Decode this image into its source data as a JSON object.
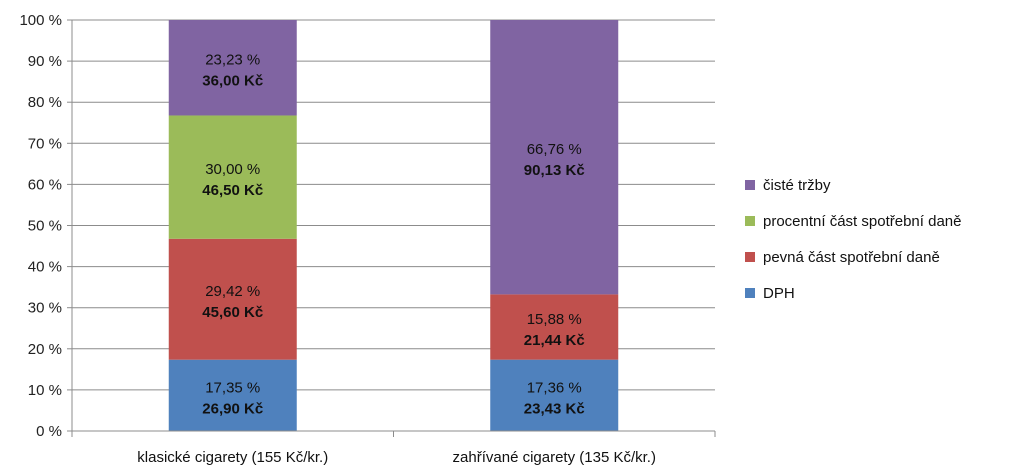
{
  "chart_data": {
    "type": "bar",
    "stacked": true,
    "grid": true,
    "legend_position": "right",
    "ylim": [
      0,
      100
    ],
    "y_ticks": [
      "0 %",
      "10 %",
      "20 %",
      "30 %",
      "40 %",
      "50 %",
      "60 %",
      "70 %",
      "80 %",
      "90 %",
      "100 %"
    ],
    "y_tick_values": [
      0,
      10,
      20,
      30,
      40,
      50,
      60,
      70,
      80,
      90,
      100
    ],
    "categories": [
      "klasické cigarety (155 Kč/kr.)",
      "zahřívané cigarety (135 Kč/kr.)"
    ],
    "series": [
      {
        "name": "DPH",
        "color": "#4f81bd",
        "values": [
          17.35,
          17.36
        ],
        "labels": [
          "17,35 %",
          "17,36 %"
        ],
        "amounts": [
          "26,90 Kč",
          "23,43 Kč"
        ]
      },
      {
        "name": "pevná část spotřební daně",
        "color": "#c0504d",
        "values": [
          29.42,
          15.88
        ],
        "labels": [
          "29,42 %",
          "15,88 %"
        ],
        "amounts": [
          "45,60 Kč",
          "21,44 Kč"
        ]
      },
      {
        "name": "procentní část spotřební daně",
        "color": "#9bbb59",
        "values": [
          30.0,
          0
        ],
        "labels": [
          "30,00 %",
          ""
        ],
        "amounts": [
          "46,50 Kč",
          ""
        ]
      },
      {
        "name": "čisté tržby",
        "color": "#8064a2",
        "values": [
          23.23,
          66.76
        ],
        "labels": [
          "23,23 %",
          "66,76 %"
        ],
        "amounts": [
          "36,00 Kč",
          "90,13 Kč"
        ]
      }
    ],
    "legend_order": [
      3,
      2,
      1,
      0
    ]
  }
}
